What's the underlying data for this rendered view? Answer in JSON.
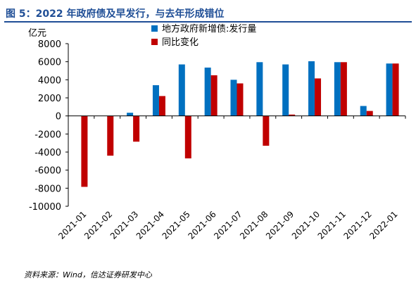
{
  "title": "图 5：2022 年政府债及早发行，与去年形成错位",
  "source": "资料来源：Wind，信达证券研发中心",
  "chart_data": {
    "type": "bar",
    "y_unit": "亿元",
    "categories": [
      "2021-01",
      "2021-02",
      "2021-03",
      "2021-04",
      "2021-05",
      "2021-06",
      "2021-07",
      "2021-08",
      "2021-09",
      "2021-10",
      "2021-11",
      "2021-12",
      "2022-01"
    ],
    "series": [
      {
        "name": "地方政府新增债:发行量",
        "color": "#0070c0",
        "values": [
          0,
          0,
          350,
          3400,
          5700,
          5350,
          4000,
          5950,
          5700,
          6050,
          5950,
          1100,
          5800
        ]
      },
      {
        "name": "同比变化",
        "color": "#c00000",
        "values": [
          -7850,
          -4400,
          -2850,
          2200,
          -4700,
          4500,
          3600,
          -3300,
          150,
          4150,
          5950,
          550,
          5800
        ]
      }
    ],
    "ylim": [
      -10000,
      8000
    ],
    "yticks": [
      8000,
      6000,
      4000,
      2000,
      0,
      -2000,
      -4000,
      -6000,
      -8000,
      -10000
    ],
    "legend_position": "top-center",
    "grid": false
  }
}
